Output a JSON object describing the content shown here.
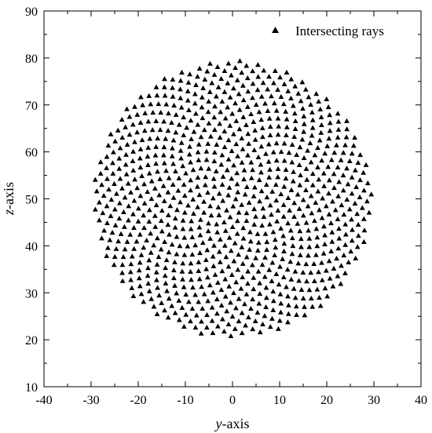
{
  "chart_data": {
    "type": "scatter",
    "xlabel": "y-axis",
    "xlabel_italic": "y",
    "xlabel_rest": "-axis",
    "ylabel": "z-axis",
    "ylabel_italic": "z",
    "ylabel_rest": "-axis",
    "xlim": [
      -40,
      40
    ],
    "ylim": [
      10,
      90
    ],
    "xticks": [
      -40,
      -30,
      -20,
      -10,
      0,
      10,
      20,
      30,
      40
    ],
    "yticks": [
      10,
      20,
      30,
      40,
      50,
      60,
      70,
      80,
      90
    ],
    "xtick_labels": [
      "-40",
      "-30",
      "-20",
      "-10",
      "0",
      "10",
      "20",
      "30",
      "40"
    ],
    "ytick_labels": [
      "10",
      "20",
      "30",
      "40",
      "50",
      "60",
      "70",
      "80",
      "90"
    ],
    "grid": false,
    "legend_position": "top-right",
    "series": [
      {
        "name": "Intersecting rays",
        "marker": "triangle",
        "color": "#000000",
        "distribution": "uniform spiral-packed disk",
        "center": [
          0,
          50
        ],
        "radius": 29.5,
        "count": 900
      }
    ]
  }
}
